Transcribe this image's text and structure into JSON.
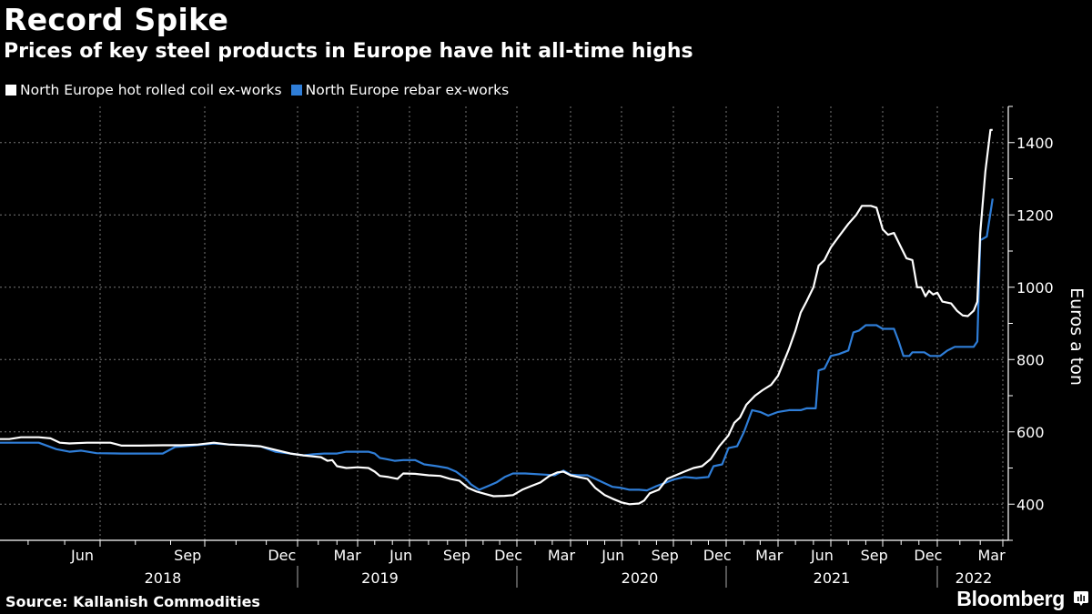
{
  "title": "Record Spike",
  "subtitle": "Prices of key steel products in Europe have hit all-time highs",
  "source": "Source: Kallanish Commodities",
  "brand": "Bloomberg",
  "brand_icon": "bloomberg-chart-icon",
  "chart_data": {
    "type": "line",
    "title": "Record Spike",
    "subtitle": "Prices of key steel products in Europe have hit all-time highs",
    "xlabel": "",
    "ylabel": "Euros a ton",
    "ylim": [
      300,
      1500
    ],
    "y_ticks": [
      400,
      600,
      800,
      1000,
      1200,
      1400
    ],
    "y_minor_ticks": [
      300,
      500,
      700,
      900,
      1100,
      1300,
      1500
    ],
    "y_axis_side": "right",
    "grid": true,
    "legend_position": "top-left",
    "x_month_labels": [
      {
        "label": "Jun",
        "date": "2018-06-01"
      },
      {
        "label": "Sep",
        "date": "2018-09-01"
      },
      {
        "label": "Dec",
        "date": "2018-12-01"
      },
      {
        "label": "Mar",
        "date": "2019-03-01"
      },
      {
        "label": "Jun",
        "date": "2019-06-01"
      },
      {
        "label": "Sep",
        "date": "2019-09-01"
      },
      {
        "label": "Dec",
        "date": "2019-12-01"
      },
      {
        "label": "Mar",
        "date": "2020-03-01"
      },
      {
        "label": "Jun",
        "date": "2020-06-01"
      },
      {
        "label": "Sep",
        "date": "2020-09-01"
      },
      {
        "label": "Dec",
        "date": "2020-12-01"
      },
      {
        "label": "Mar",
        "date": "2021-03-01"
      },
      {
        "label": "Jun",
        "date": "2021-06-01"
      },
      {
        "label": "Sep",
        "date": "2021-09-01"
      },
      {
        "label": "Dec",
        "date": "2021-12-01"
      },
      {
        "label": "Mar",
        "date": "2022-03-01"
      }
    ],
    "x_year_labels": [
      "2018",
      "2019",
      "2020",
      "2021",
      "2022"
    ],
    "series": [
      {
        "name": "North Europe hot rolled coil ex-works",
        "color": "#ffffff",
        "points": [
          [
            "2018-04-01",
            580
          ],
          [
            "2018-04-15",
            580
          ],
          [
            "2018-04-25",
            585
          ],
          [
            "2018-05-10",
            585
          ],
          [
            "2018-05-20",
            582
          ],
          [
            "2018-05-28",
            570
          ],
          [
            "2018-06-05",
            568
          ],
          [
            "2018-06-20",
            570
          ],
          [
            "2018-07-10",
            570
          ],
          [
            "2018-07-20",
            562
          ],
          [
            "2018-08-05",
            562
          ],
          [
            "2018-08-25",
            563
          ],
          [
            "2018-09-10",
            563
          ],
          [
            "2018-09-25",
            565
          ],
          [
            "2018-10-10",
            570
          ],
          [
            "2018-10-25",
            565
          ],
          [
            "2018-11-10",
            563
          ],
          [
            "2018-11-25",
            560
          ],
          [
            "2018-12-10",
            550
          ],
          [
            "2018-12-25",
            540
          ],
          [
            "2019-01-10",
            535
          ],
          [
            "2019-01-25",
            532
          ],
          [
            "2019-02-05",
            530
          ],
          [
            "2019-02-15",
            520
          ],
          [
            "2019-02-22",
            522
          ],
          [
            "2019-03-01",
            505
          ],
          [
            "2019-03-15",
            500
          ],
          [
            "2019-04-01",
            502
          ],
          [
            "2019-04-20",
            500
          ],
          [
            "2019-05-01",
            490
          ],
          [
            "2019-05-10",
            478
          ],
          [
            "2019-05-25",
            475
          ],
          [
            "2019-06-10",
            470
          ],
          [
            "2019-06-20",
            485
          ],
          [
            "2019-07-10",
            484
          ],
          [
            "2019-08-01",
            480
          ],
          [
            "2019-08-20",
            478
          ],
          [
            "2019-09-05",
            470
          ],
          [
            "2019-09-20",
            465
          ],
          [
            "2019-10-05",
            445
          ],
          [
            "2019-10-20",
            435
          ],
          [
            "2019-11-05",
            428
          ],
          [
            "2019-11-20",
            422
          ],
          [
            "2019-12-10",
            423
          ],
          [
            "2019-12-25",
            425
          ],
          [
            "2020-01-10",
            440
          ],
          [
            "2020-01-25",
            450
          ],
          [
            "2020-02-10",
            460
          ],
          [
            "2020-02-25",
            478
          ],
          [
            "2020-03-10",
            488
          ],
          [
            "2020-03-20",
            490
          ],
          [
            "2020-04-01",
            480
          ],
          [
            "2020-04-15",
            475
          ],
          [
            "2020-05-01",
            470
          ],
          [
            "2020-05-15",
            445
          ],
          [
            "2020-06-01",
            425
          ],
          [
            "2020-06-15",
            415
          ],
          [
            "2020-07-01",
            405
          ],
          [
            "2020-07-15",
            400
          ],
          [
            "2020-08-01",
            402
          ],
          [
            "2020-08-10",
            410
          ],
          [
            "2020-08-20",
            430
          ],
          [
            "2020-09-05",
            440
          ],
          [
            "2020-09-20",
            470
          ],
          [
            "2020-10-05",
            480
          ],
          [
            "2020-10-20",
            490
          ],
          [
            "2020-11-05",
            500
          ],
          [
            "2020-11-20",
            505
          ],
          [
            "2020-12-05",
            525
          ],
          [
            "2020-12-20",
            560
          ],
          [
            "2021-01-05",
            590
          ],
          [
            "2021-01-15",
            625
          ],
          [
            "2021-01-25",
            640
          ],
          [
            "2021-02-05",
            675
          ],
          [
            "2021-02-20",
            700
          ],
          [
            "2021-03-05",
            715
          ],
          [
            "2021-03-20",
            730
          ],
          [
            "2021-04-01",
            755
          ],
          [
            "2021-04-10",
            790
          ],
          [
            "2021-04-20",
            830
          ],
          [
            "2021-05-01",
            880
          ],
          [
            "2021-05-10",
            930
          ],
          [
            "2021-05-20",
            960
          ],
          [
            "2021-06-01",
            1000
          ],
          [
            "2021-06-10",
            1060
          ],
          [
            "2021-06-20",
            1075
          ],
          [
            "2021-07-01",
            1110
          ],
          [
            "2021-07-15",
            1140
          ],
          [
            "2021-08-01",
            1175
          ],
          [
            "2021-08-15",
            1200
          ],
          [
            "2021-08-25",
            1225
          ],
          [
            "2021-09-10",
            1225
          ],
          [
            "2021-09-20",
            1220
          ],
          [
            "2021-10-01",
            1160
          ],
          [
            "2021-10-10",
            1145
          ],
          [
            "2021-10-20",
            1150
          ],
          [
            "2021-11-01",
            1110
          ],
          [
            "2021-11-10",
            1080
          ],
          [
            "2021-11-20",
            1075
          ],
          [
            "2021-11-28",
            1000
          ],
          [
            "2021-12-05",
            1000
          ],
          [
            "2021-12-12",
            975
          ],
          [
            "2021-12-18",
            990
          ],
          [
            "2021-12-25",
            980
          ],
          [
            "2022-01-01",
            985
          ],
          [
            "2022-01-08",
            960
          ],
          [
            "2022-01-20",
            955
          ],
          [
            "2022-01-28",
            935
          ],
          [
            "2022-02-05",
            922
          ],
          [
            "2022-02-12",
            920
          ],
          [
            "2022-02-20",
            935
          ],
          [
            "2022-02-25",
            960
          ],
          [
            "2022-03-01",
            1150
          ],
          [
            "2022-03-08",
            1320
          ],
          [
            "2022-03-15",
            1435
          ],
          [
            "2022-03-18",
            1435
          ]
        ]
      },
      {
        "name": "North Europe rebar ex-works",
        "color": "#2f7ed8",
        "points": [
          [
            "2018-04-01",
            570
          ],
          [
            "2018-05-10",
            570
          ],
          [
            "2018-05-25",
            552
          ],
          [
            "2018-06-05",
            545
          ],
          [
            "2018-06-15",
            548
          ],
          [
            "2018-06-28",
            541
          ],
          [
            "2018-07-20",
            540
          ],
          [
            "2018-08-25",
            540
          ],
          [
            "2018-09-05",
            558
          ],
          [
            "2018-09-20",
            562
          ],
          [
            "2018-10-10",
            568
          ],
          [
            "2018-10-25",
            565
          ],
          [
            "2018-11-10",
            563
          ],
          [
            "2018-11-25",
            560
          ],
          [
            "2018-12-10",
            545
          ],
          [
            "2018-12-25",
            540
          ],
          [
            "2019-01-10",
            535
          ],
          [
            "2019-01-25",
            538
          ],
          [
            "2019-02-10",
            540
          ],
          [
            "2019-03-01",
            540
          ],
          [
            "2019-03-15",
            545
          ],
          [
            "2019-04-01",
            545
          ],
          [
            "2019-04-20",
            545
          ],
          [
            "2019-05-01",
            540
          ],
          [
            "2019-05-10",
            528
          ],
          [
            "2019-05-20",
            525
          ],
          [
            "2019-06-05",
            520
          ],
          [
            "2019-06-20",
            522
          ],
          [
            "2019-07-10",
            522
          ],
          [
            "2019-07-25",
            510
          ],
          [
            "2019-08-15",
            505
          ],
          [
            "2019-09-01",
            500
          ],
          [
            "2019-09-15",
            490
          ],
          [
            "2019-10-01",
            470
          ],
          [
            "2019-10-10",
            455
          ],
          [
            "2019-10-25",
            440
          ],
          [
            "2019-11-10",
            450
          ],
          [
            "2019-11-25",
            460
          ],
          [
            "2019-12-10",
            475
          ],
          [
            "2019-12-25",
            485
          ],
          [
            "2020-01-15",
            485
          ],
          [
            "2020-02-15",
            482
          ],
          [
            "2020-03-05",
            480
          ],
          [
            "2020-03-20",
            493
          ],
          [
            "2020-04-01",
            482
          ],
          [
            "2020-04-15",
            480
          ],
          [
            "2020-05-01",
            480
          ],
          [
            "2020-05-15",
            470
          ],
          [
            "2020-06-01",
            458
          ],
          [
            "2020-06-15",
            448
          ],
          [
            "2020-07-01",
            445
          ],
          [
            "2020-07-15",
            440
          ],
          [
            "2020-08-01",
            440
          ],
          [
            "2020-08-15",
            438
          ],
          [
            "2020-09-01",
            450
          ],
          [
            "2020-09-15",
            458
          ],
          [
            "2020-10-01",
            468
          ],
          [
            "2020-10-20",
            475
          ],
          [
            "2020-11-10",
            472
          ],
          [
            "2020-12-01",
            475
          ],
          [
            "2020-12-10",
            505
          ],
          [
            "2020-12-25",
            510
          ],
          [
            "2021-01-05",
            555
          ],
          [
            "2021-01-20",
            560
          ],
          [
            "2021-02-01",
            600
          ],
          [
            "2021-02-15",
            660
          ],
          [
            "2021-03-01",
            655
          ],
          [
            "2021-03-15",
            645
          ],
          [
            "2021-04-01",
            655
          ],
          [
            "2021-04-20",
            660
          ],
          [
            "2021-05-10",
            660
          ],
          [
            "2021-05-20",
            665
          ],
          [
            "2021-06-05",
            665
          ],
          [
            "2021-06-10",
            770
          ],
          [
            "2021-06-20",
            775
          ],
          [
            "2021-07-01",
            810
          ],
          [
            "2021-07-15",
            815
          ],
          [
            "2021-08-01",
            825
          ],
          [
            "2021-08-10",
            875
          ],
          [
            "2021-08-20",
            880
          ],
          [
            "2021-09-01",
            895
          ],
          [
            "2021-09-20",
            895
          ],
          [
            "2021-10-01",
            885
          ],
          [
            "2021-10-20",
            885
          ],
          [
            "2021-10-28",
            850
          ],
          [
            "2021-11-05",
            810
          ],
          [
            "2021-11-15",
            810
          ],
          [
            "2021-11-20",
            820
          ],
          [
            "2021-12-10",
            820
          ],
          [
            "2021-12-20",
            810
          ],
          [
            "2022-01-05",
            810
          ],
          [
            "2022-01-15",
            825
          ],
          [
            "2022-01-25",
            835
          ],
          [
            "2022-02-10",
            835
          ],
          [
            "2022-02-20",
            835
          ],
          [
            "2022-02-25",
            850
          ],
          [
            "2022-03-01",
            1130
          ],
          [
            "2022-03-10",
            1140
          ],
          [
            "2022-03-18",
            1245
          ]
        ]
      }
    ]
  }
}
